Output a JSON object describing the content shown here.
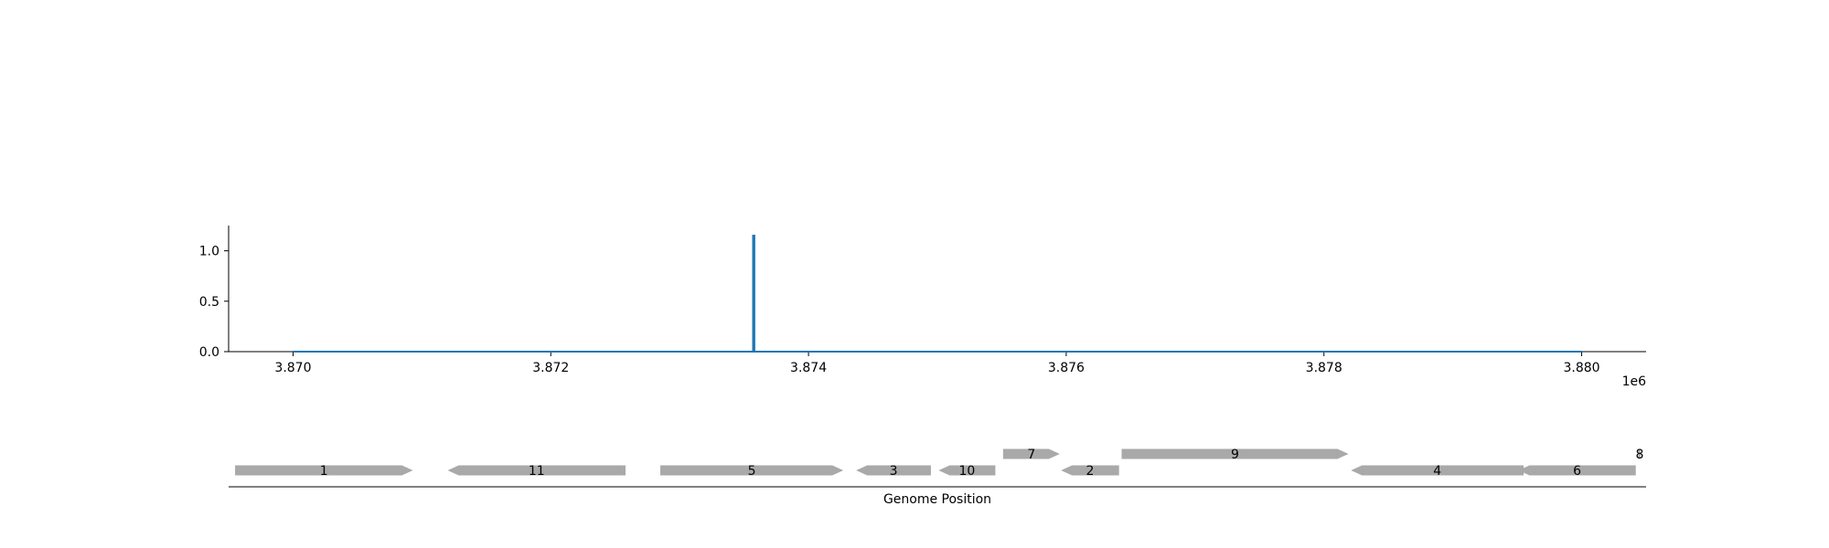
{
  "chart_data": {
    "type": "line",
    "title": "",
    "xlabel": "Genome Position",
    "ylabel": "",
    "x_offset_label": "1e6",
    "xlim": [
      3869500,
      3880500
    ],
    "ylim": [
      0,
      1.25
    ],
    "x_ticks": [
      3870000,
      3872000,
      3874000,
      3876000,
      3878000,
      3880000
    ],
    "x_tick_labels": [
      "3.870",
      "3.872",
      "3.874",
      "3.876",
      "3.878",
      "3.880"
    ],
    "y_ticks": [
      0,
      0.5,
      1.0
    ],
    "y_tick_labels": [
      "0.0",
      "0.5",
      "1.0"
    ],
    "grid": false,
    "series": [
      {
        "color": "#1f77b4",
        "x": [
          3870000,
          3873570,
          3873570,
          3873580,
          3873580,
          3880000
        ],
        "y": [
          0,
          0,
          1.15,
          1.15,
          0,
          0
        ]
      }
    ],
    "genes": [
      {
        "label": "1",
        "start": 3869550,
        "end": 3870930,
        "strand": "+",
        "track": 0
      },
      {
        "label": "11",
        "start": 3871200,
        "end": 3872580,
        "strand": "-",
        "track": 0
      },
      {
        "label": "5",
        "start": 3872850,
        "end": 3874270,
        "strand": "+",
        "track": 0
      },
      {
        "label": "3",
        "start": 3874370,
        "end": 3874950,
        "strand": "-",
        "track": 0
      },
      {
        "label": "10",
        "start": 3875010,
        "end": 3875450,
        "strand": "-",
        "track": 0
      },
      {
        "label": "7",
        "start": 3875510,
        "end": 3875950,
        "strand": "+",
        "track": 1
      },
      {
        "label": "2",
        "start": 3875960,
        "end": 3876410,
        "strand": "-",
        "track": 0
      },
      {
        "label": "9",
        "start": 3876430,
        "end": 3878190,
        "strand": "+",
        "track": 1
      },
      {
        "label": "4",
        "start": 3878210,
        "end": 3879550,
        "strand": "-",
        "track": 0
      },
      {
        "label": "6",
        "start": 3879510,
        "end": 3880420,
        "strand": "-",
        "track": 0
      },
      {
        "label": "8",
        "start": 3880440,
        "end": 3880460,
        "strand": "+",
        "track": 1
      }
    ],
    "gene_color": "#a9a9a9"
  }
}
